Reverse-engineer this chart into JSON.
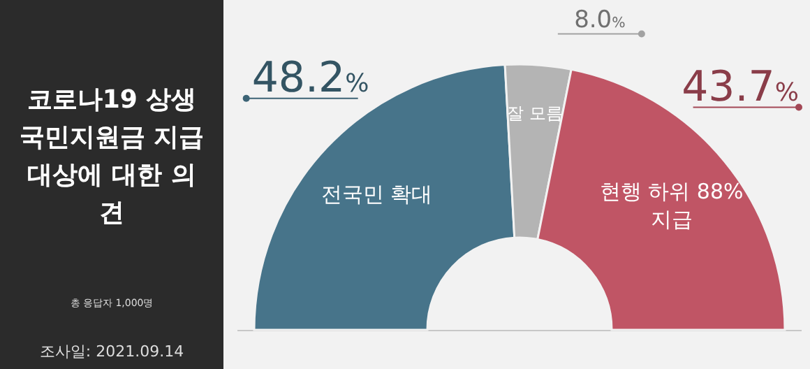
{
  "chart_data": {
    "type": "donut",
    "title": "코로나19 상생 국민지원금 지급 대상에 대한 의견",
    "categories": [
      "전국민 확대",
      "잘 모름",
      "현행 하위 88% 지급"
    ],
    "values": [
      48.2,
      8.0,
      43.7
    ],
    "colors": [
      "#47748a",
      "#b4b4b4",
      "#c05565"
    ],
    "value_labels": [
      "48.2%",
      "8.0%",
      "43.7%"
    ],
    "annotations": [
      "총 응답자 1,000명",
      "조사일: 2021.09.14"
    ]
  }
}
